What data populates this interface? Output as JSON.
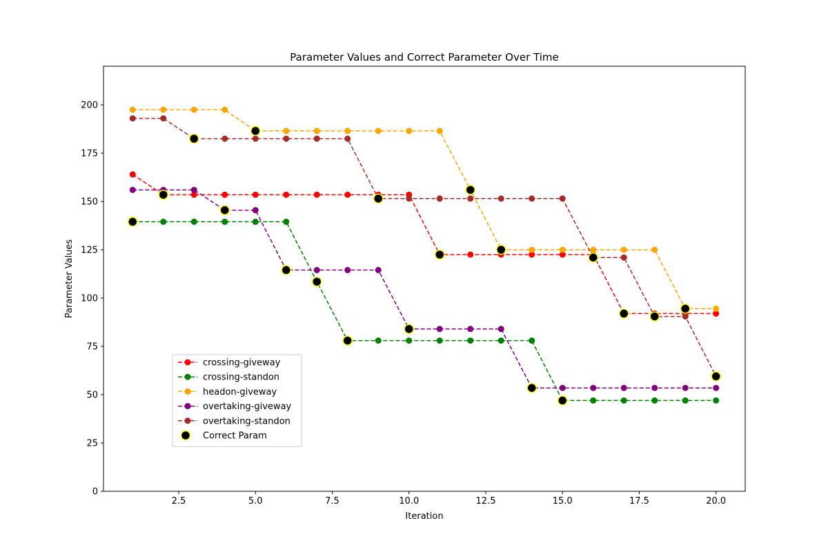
{
  "chart_data": {
    "type": "line",
    "title": "Parameter Values and Correct Parameter Over Time",
    "xlabel": "Iteration",
    "ylabel": "Parameter Values",
    "xlim": [
      0.05,
      20.95
    ],
    "ylim": [
      0,
      220
    ],
    "xticks": [
      2.5,
      5.0,
      7.5,
      10.0,
      12.5,
      15.0,
      17.5,
      20.0
    ],
    "xtick_labels": [
      "2.5",
      "5.0",
      "7.5",
      "10.0",
      "12.5",
      "15.0",
      "17.5",
      "20.0"
    ],
    "yticks": [
      0,
      25,
      50,
      75,
      100,
      125,
      150,
      175,
      200
    ],
    "ytick_labels": [
      "0",
      "25",
      "50",
      "75",
      "100",
      "125",
      "150",
      "175",
      "200"
    ],
    "grid": false,
    "legend_position": "lower-left",
    "x": [
      1,
      2,
      3,
      4,
      5,
      6,
      7,
      8,
      9,
      10,
      11,
      12,
      13,
      14,
      15,
      16,
      17,
      18,
      19,
      20
    ],
    "series": [
      {
        "name": "crossing-giveway",
        "color": "#ff0000",
        "values": [
          164,
          153.5,
          153.5,
          153.5,
          153.5,
          153.5,
          153.5,
          153.5,
          153.5,
          153.5,
          122.5,
          122.5,
          122.5,
          122.5,
          122.5,
          122.5,
          92,
          92,
          92,
          92
        ]
      },
      {
        "name": "crossing-standon",
        "color": "#008000",
        "values": [
          139.5,
          139.5,
          139.5,
          139.5,
          139.5,
          139.5,
          108.5,
          78,
          78,
          78,
          78,
          78,
          78,
          78,
          47,
          47,
          47,
          47,
          47,
          47
        ]
      },
      {
        "name": "headon-giveway",
        "color": "#ffa500",
        "values": [
          197.5,
          197.5,
          197.5,
          197.5,
          186.5,
          186.5,
          186.5,
          186.5,
          186.5,
          186.5,
          186.5,
          156,
          125,
          125,
          125,
          125,
          125,
          125,
          94.5,
          94.5
        ]
      },
      {
        "name": "overtaking-giveway",
        "color": "#800080",
        "values": [
          156,
          156,
          156,
          145.5,
          145.5,
          114.5,
          114.5,
          114.5,
          114.5,
          84,
          84,
          84,
          84,
          53.5,
          53.5,
          53.5,
          53.5,
          53.5,
          53.5,
          53.5
        ]
      },
      {
        "name": "overtaking-standon",
        "color": "#a52a2a",
        "values": [
          193,
          193,
          182.5,
          182.5,
          182.5,
          182.5,
          182.5,
          182.5,
          151.5,
          151.5,
          151.5,
          151.5,
          151.5,
          151.5,
          151.5,
          121,
          121,
          90.5,
          90.5,
          59.5
        ]
      }
    ],
    "correct_param": {
      "name": "Correct Param",
      "color": "#000000",
      "edge_color": "#ffff00",
      "values": [
        139.5,
        153.5,
        182.5,
        145.5,
        186.5,
        114.5,
        108.5,
        78,
        151.5,
        84,
        122.5,
        156,
        125,
        53.5,
        47,
        121,
        92,
        90.5,
        94.5,
        59.5
      ]
    }
  }
}
